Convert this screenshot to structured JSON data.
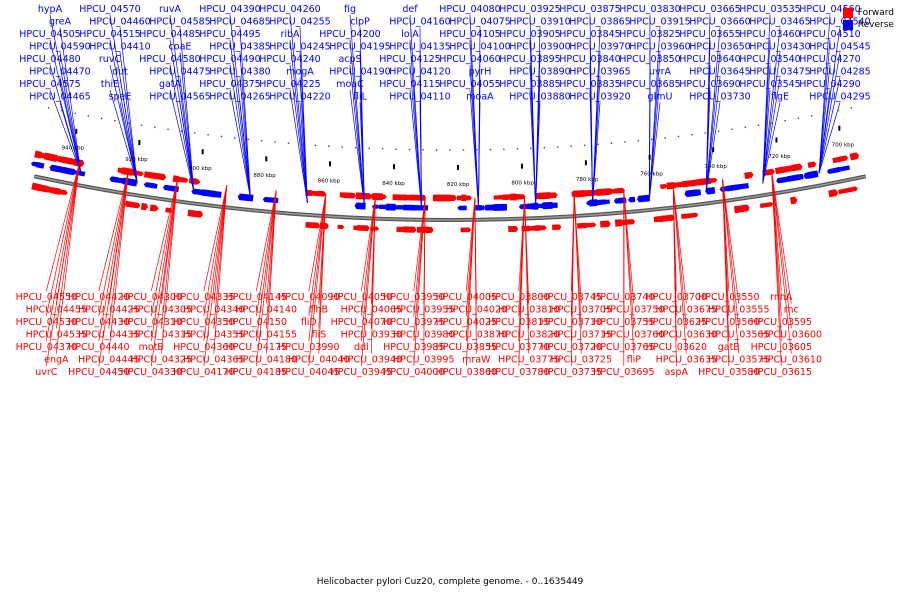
{
  "legend": {
    "forward_label": "Forward",
    "reverse_label": "Reverse",
    "forward_color": "#ff0000",
    "reverse_color": "#0000ff"
  },
  "caption": "Helicobacter pylori Cuz20, complete genome. - 0..1635449",
  "scale": {
    "tick_labels": [
      "940 kbp",
      "920 kbp",
      "900 kbp",
      "880 kbp",
      "860 kbp",
      "840 kbp",
      "820 kbp",
      "800 kbp",
      "780 kbp",
      "760 kbp",
      "740 kbp",
      "720 kbp",
      "700 kbp"
    ],
    "tick_values": [
      940,
      920,
      900,
      880,
      860,
      840,
      820,
      800,
      780,
      760,
      740,
      720,
      700
    ],
    "range_kbp": [
      950,
      695
    ]
  },
  "reverse_labels": [
    "hypA",
    "greA",
    "HPCU_04505",
    "HPCU_04590",
    "HPCU_04480",
    "HPCU_04470",
    "HPCU_04575",
    "HPCU_04465",
    "HPCU_04570",
    "HPCU_04460",
    "HPCU_04515",
    "HPCU_04410",
    "ruvC",
    "dut",
    "thiE",
    "speE",
    "ruvA",
    "HPCU_04585",
    "HPCU_04485",
    "coaE",
    "HPCU_04580",
    "HPCU_04475",
    "gatA",
    "HPCU_04565",
    "HPCU_04390",
    "HPCU_04685",
    "HPCU_04495",
    "HPCU_04385",
    "HPCU_04490",
    "HPCU_04380",
    "HPCU_04375",
    "HPCU_04265",
    "HPCU_04260",
    "HPCU_04255",
    "ribA",
    "HPCU_04245",
    "HPCU_04240",
    "mogA",
    "HPCU_04225",
    "HPCU_04220",
    "fig",
    "clpP",
    "HPCU_04200",
    "HPCU_04195",
    "acpS",
    "HPCU_04190",
    "moaC",
    "fliL",
    "def",
    "HPCU_04160",
    "lolA",
    "HPCU_04135",
    "HPCU_04125",
    "HPCU_04120",
    "HPCU_04115",
    "HPCU_04110",
    "HPCU_04080",
    "HPCU_04075",
    "HPCU_04105",
    "HPCU_04100",
    "HPCU_04060",
    "pyrH",
    "HPCU_04055",
    "moaA",
    "HPCU_03925",
    "HPCU_03910",
    "HPCU_03905",
    "HPCU_03900",
    "HPCU_03895",
    "HPCU_03890",
    "HPCU_03885",
    "HPCU_03880",
    "HPCU_03875",
    "HPCU_03865",
    "HPCU_03845",
    "HPCU_03970",
    "HPCU_03840",
    "HPCU_03965",
    "HPCU_03835",
    "HPCU_03920",
    "HPCU_03830",
    "HPCU_03915",
    "HPCU_03825",
    "HPCU_03960",
    "HPCU_03850",
    "uvrA",
    "HPCU_03685",
    "glmU",
    "HPCU_03665",
    "HPCU_03660",
    "HPCU_03655",
    "HPCU_03650",
    "HPCU_03640",
    "HPCU_03645",
    "HPCU_03690",
    "HPCU_03730",
    "HPCU_03535",
    "HPCU_03465",
    "HPCU_03460",
    "HPCU_03430",
    "HPCU_03540",
    "HPCU_03475",
    "HPCU_03545",
    "flgE",
    "HPCU_04560",
    "HPCU_04540",
    "HPCU_04510",
    "HPCU_04545",
    "HPCU_04270",
    "HPCU_04285",
    "HPCU_04290",
    "HPCU_04295"
  ],
  "forward_labels": [
    "HPCU_04550",
    "HPCU_04455",
    "HPCU_04530",
    "HPCU_04535",
    "HPCU_04370",
    "engA",
    "uvrC",
    "HPCU_04420",
    "HPCU_04425",
    "HPCU_04430",
    "HPCU_04435",
    "HPCU_04440",
    "HPCU_04445",
    "HPCU_04450",
    "HPCU_04300",
    "HPCU_04305",
    "HPCU_04310",
    "HPCU_04315",
    "motB",
    "HPCU_04325",
    "HPCU_04330",
    "HPCU_04335",
    "HPCU_04340",
    "HPCU_04350",
    "HPCU_04355",
    "HPCU_04360",
    "HPCU_04365",
    "HPCU_04170",
    "HPCU_04145",
    "HPCU_04140",
    "HPCU_04150",
    "HPCU_04155",
    "HPCU_04175",
    "HPCU_04180",
    "HPCU_04185",
    "HPCU_04090",
    "flhB",
    "fliD",
    "fliS",
    "HPCU_03990",
    "HPCU_04040",
    "HPCU_04045",
    "HPCU_04050",
    "HPCU_04065",
    "HPCU_04070",
    "HPCU_03930",
    "ddl",
    "HPCU_03940",
    "HPCU_03945",
    "HPCU_03950",
    "HPCU_03955",
    "HPCU_03975",
    "HPCU_03980",
    "HPCU_03985",
    "HPCU_03995",
    "HPCU_04000",
    "HPCU_04005",
    "HPCU_04020",
    "HPCU_04025",
    "HPCU_03870",
    "HPCU_03855",
    "mraW",
    "HPCU_03860",
    "HPCU_03800",
    "HPCU_03810",
    "HPCU_03815",
    "HPCU_03820",
    "HPCU_03770",
    "HPCU_03775",
    "HPCU_03780",
    "HPCU_03745",
    "HPCU_03705",
    "HPCU_03710",
    "HPCU_03715",
    "HPCU_03720",
    "HPCU_03725",
    "HPCU_03735",
    "HPCU_03740",
    "HPCU_03750",
    "HPCU_03755",
    "HPCU_03760",
    "HPCU_03765",
    "fliP",
    "HPCU_03695",
    "HPCU_03700",
    "HPCU_03675",
    "HPCU_03625",
    "HPCU_03630",
    "HPCU_03620",
    "HPCU_03635",
    "aspA",
    "HPCU_03550",
    "HPCU_03555",
    "HPCU_03560",
    "HPCU_03565",
    "gatB",
    "HPCU_03575",
    "HPCU_03580",
    "rnhA",
    "rnc",
    "HPCU_03595",
    "HPCU_03600",
    "HPCU_03605",
    "HPCU_03610",
    "HPCU_03615"
  ]
}
